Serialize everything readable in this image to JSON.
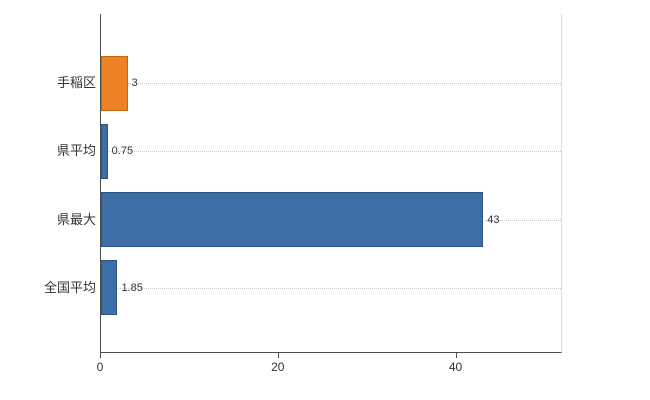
{
  "chart_data": {
    "type": "bar",
    "orientation": "horizontal",
    "title": "",
    "xlabel": "",
    "ylabel": "",
    "categories": [
      "手稲区",
      "県平均",
      "県最大",
      "全国平均"
    ],
    "values": [
      3,
      0.75,
      43,
      1.85
    ],
    "value_labels": [
      "3",
      "0.75",
      "43",
      "1.85"
    ],
    "bar_colors": [
      "#ee8227",
      "#3d6ea8",
      "#3d6ea8",
      "#3d6ea8"
    ],
    "bar_border_colors": [
      "#c4650f",
      "#2c547f",
      "#2c547f",
      "#2c547f"
    ],
    "xlim": [
      0,
      51.75
    ],
    "x_ticks": [
      0,
      20,
      40
    ],
    "x_tick_labels": [
      "0",
      "20",
      "40"
    ],
    "grid": "dotted-horizontal-per-category",
    "legend": "none"
  },
  "colors": {
    "axis": "#4d4d4d",
    "grid": "#c8c8c8",
    "text": "#333333",
    "background": "#ffffff"
  }
}
